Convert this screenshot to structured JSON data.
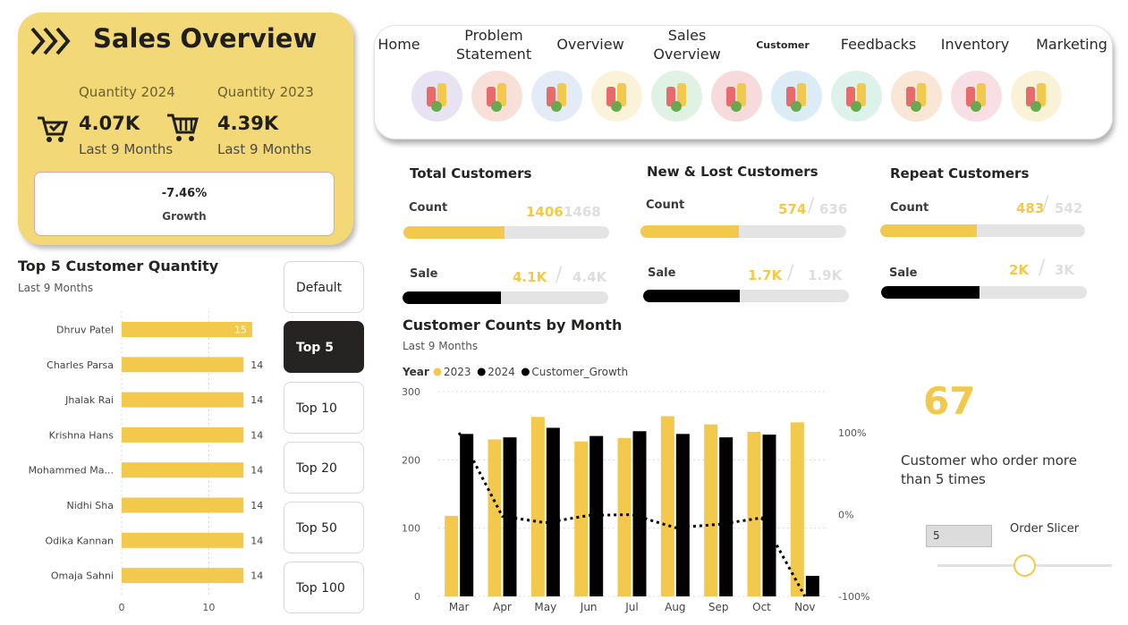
{
  "header": {
    "title": "Sales Overview",
    "icon": "triple-chevron-icon",
    "qty_2024_label": "Quantity 2024",
    "qty_2024_value": "4.07K",
    "qty_2024_sub": "Last 9 Months",
    "qty_2023_label": "Quantity 2023",
    "qty_2023_value": "4.39K",
    "qty_2023_sub": "Last 9 Months",
    "growth_value": "-7.46%",
    "growth_label": "Growth"
  },
  "nav": {
    "tabs": [
      {
        "label": "Home"
      },
      {
        "label": "Problem\nStatement"
      },
      {
        "label": "Overview"
      },
      {
        "label": "Sales\nOverview"
      },
      {
        "label": "Customer",
        "active": true
      },
      {
        "label": "Feedbacks"
      },
      {
        "label": "Inventory"
      },
      {
        "label": "Marketing"
      }
    ],
    "icons": [
      {
        "name": "mother-child-icon",
        "bg": "#e8e3f3"
      },
      {
        "name": "beverages-icon",
        "bg": "#f8e0d8"
      },
      {
        "name": "dairy-icon",
        "bg": "#e3ebf7"
      },
      {
        "name": "fruits-icon",
        "bg": "#fbf3d9"
      },
      {
        "name": "grocery-bag-icon",
        "bg": "#dff2e3"
      },
      {
        "name": "personal-care-icon",
        "bg": "#f7dadb"
      },
      {
        "name": "ice-cream-icon",
        "bg": "#dcecf6"
      },
      {
        "name": "medicine-icon",
        "bg": "#ddf2ea"
      },
      {
        "name": "pet-food-icon",
        "bg": "#fae6d4"
      },
      {
        "name": "pharmacy-icon",
        "bg": "#f7dfe3"
      },
      {
        "name": "snacks-icon",
        "bg": "#f9f2d7"
      }
    ]
  },
  "kpis": {
    "total": {
      "title": "Total Customers",
      "count_label": "Count",
      "count_value": "1406",
      "count_prev": "1468",
      "count_fraction": 0.49,
      "sale_label": "Sale",
      "sale_value": "4.1K",
      "sale_prev": "4.4K",
      "sale_fraction": 0.48
    },
    "new_lost": {
      "title": "New & Lost Customers",
      "count_label": "Count",
      "count_value": "574",
      "count_prev": "636",
      "count_fraction": 0.48,
      "sale_label": "Sale",
      "sale_value": "1.7K",
      "sale_prev": "1.9K",
      "sale_fraction": 0.47
    },
    "repeat": {
      "title": "Repeat Customers",
      "count_label": "Count",
      "count_value": "483",
      "count_prev": "542",
      "count_fraction": 0.47,
      "sale_label": "Sale",
      "sale_value": "2K",
      "sale_prev": "3K",
      "sale_fraction": 0.48
    }
  },
  "top_customers": {
    "title": "Top 5 Customer Quantity",
    "subtitle": "Last 9 Months"
  },
  "filters": {
    "buttons": [
      {
        "label": "Default"
      },
      {
        "label": "Top 5",
        "active": true
      },
      {
        "label": "Top 10"
      },
      {
        "label": "Top 20"
      },
      {
        "label": "Top 50"
      },
      {
        "label": "Top 100"
      }
    ]
  },
  "monthly": {
    "title": "Customer Counts by Month",
    "subtitle": "Last 9 Months"
  },
  "highlight": {
    "value": "67",
    "description": "Customer who order more than 5 times"
  },
  "slicer": {
    "value": "5",
    "label": "Order Slicer",
    "position_fraction": 0.5
  },
  "colors": {
    "accent": "#f2c94c",
    "dark": "#000000",
    "card": "#f2d876"
  },
  "chart_data": [
    {
      "type": "bar",
      "orientation": "horizontal",
      "categories": [
        "Dhruv Patel",
        "Charles Parsa",
        "Jhalak Rai",
        "Krishna Hans",
        "Mohammed Ma...",
        "Nidhi Sha",
        "Odika Kannan",
        "Omaja Sahni"
      ],
      "values": [
        15,
        14,
        14,
        14,
        14,
        14,
        14,
        14
      ],
      "xlim": [
        0,
        15
      ],
      "xticks": [
        0,
        10
      ],
      "color": "#f2c94c"
    },
    {
      "type": "bar",
      "categories": [
        "Mar",
        "Apr",
        "May",
        "Jun",
        "Jul",
        "Aug",
        "Sep",
        "Oct",
        "Nov"
      ],
      "legend_title": "Year",
      "series": [
        {
          "name": "2023",
          "values": [
            118,
            230,
            263,
            227,
            232,
            264,
            252,
            241,
            255
          ],
          "color": "#f2c94c"
        },
        {
          "name": "2024",
          "values": [
            238,
            233,
            247,
            235,
            242,
            238,
            233,
            237,
            30
          ],
          "color": "#000000"
        },
        {
          "name": "Customer_Growth",
          "type": "line",
          "axis": "right",
          "values": [
            100,
            -2,
            -10,
            -1,
            0,
            -16,
            -12,
            -4,
            -100
          ],
          "color": "#000000",
          "style": "dotted"
        }
      ],
      "ylim": [
        0,
        300
      ],
      "yticks": [
        0,
        100,
        200,
        300
      ],
      "y2ticks": [
        "100%",
        "0%",
        "-100%"
      ],
      "y2lim": [
        -100,
        100
      ],
      "grid": true,
      "legend_position": "top-left"
    }
  ]
}
